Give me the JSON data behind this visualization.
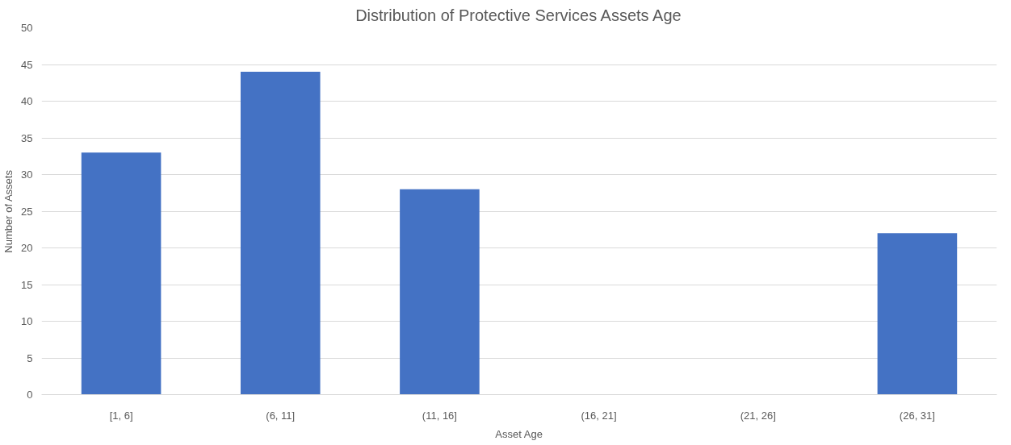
{
  "chart_data": {
    "type": "bar",
    "title": "Distribution of Protective Services Assets Age",
    "xlabel": "Asset Age",
    "ylabel": "Number of Assets",
    "categories": [
      "[1, 6]",
      "(6, 11]",
      "(11, 16]",
      "(16, 21]",
      "(21, 26]",
      "(26, 31]"
    ],
    "values": [
      33,
      44,
      28,
      0,
      0,
      22
    ],
    "color": "#4472c4",
    "ylim": [
      0,
      50
    ],
    "yticks": [
      0,
      5,
      10,
      15,
      20,
      25,
      30,
      35,
      40,
      45,
      50
    ],
    "grid": "y"
  }
}
